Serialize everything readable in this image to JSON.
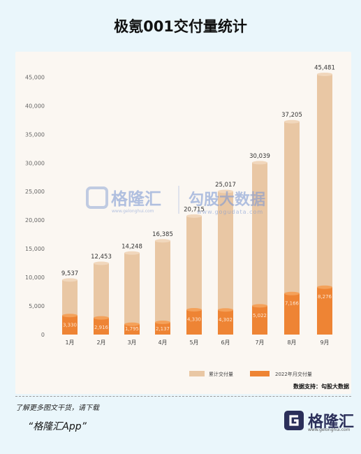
{
  "title": "极氪001交付量统计",
  "chart_data": {
    "type": "bar",
    "categories": [
      "1月",
      "2月",
      "3月",
      "4月",
      "5月",
      "6月",
      "7月",
      "8月",
      "9月"
    ],
    "series": [
      {
        "name": "累计交付量",
        "values": [
          9537,
          12453,
          14248,
          16385,
          20715,
          25017,
          30039,
          37205,
          45481
        ],
        "color": "#e9c7a4"
      },
      {
        "name": "2022年月交付量",
        "values": [
          3330,
          2916,
          1795,
          2137,
          4330,
          4302,
          5022,
          7166,
          8276
        ],
        "color": "#ee8434"
      }
    ],
    "labels_total": [
      "9,537",
      "12,453",
      "14,248",
      "16,385",
      "20,715",
      "25,017",
      "30,039",
      "37,205",
      "45,481"
    ],
    "labels_month": [
      "3,330",
      "2,916",
      "1,795",
      "2,137",
      "4,330",
      "4,302",
      "5,022",
      "7,166",
      "8,276"
    ],
    "yticks": [
      0,
      5000,
      10000,
      15000,
      20000,
      25000,
      30000,
      35000,
      40000,
      45000
    ],
    "ytick_labels": [
      "0",
      "5,000",
      "10,000",
      "15,000",
      "20,000",
      "25,000",
      "30,000",
      "35,000",
      "40,000",
      "45,000"
    ],
    "ylim": [
      0,
      47000
    ],
    "grid": false,
    "legend_position": "bottom-right"
  },
  "watermark": {
    "brand1": "格隆汇",
    "brand1_sub": "www.gelonghui.com",
    "brand2": "勾股大数据",
    "brand2_sub": "www.gogudata.com"
  },
  "source": "数据支持：勾股大数据",
  "footer": {
    "text": "了解更多图文干货，请下载",
    "app": "“格隆汇App”",
    "logo": "格隆汇",
    "logo_sub": "www.gelonghui.com"
  }
}
